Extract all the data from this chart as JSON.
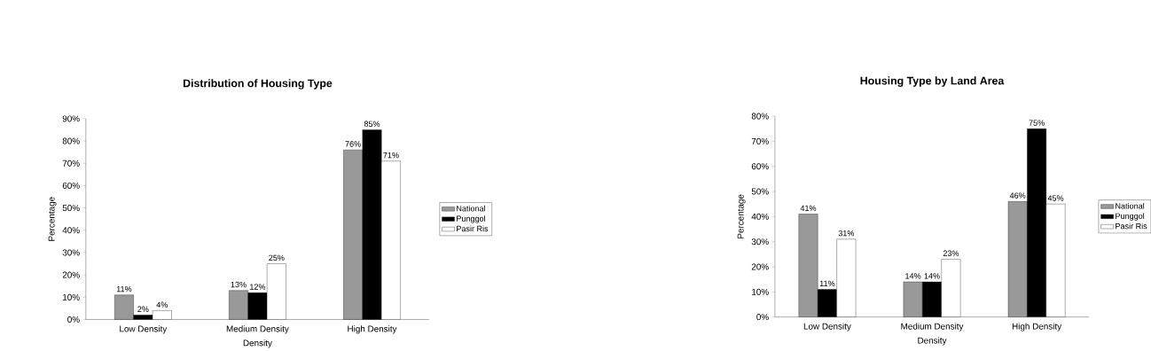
{
  "chart_data": [
    {
      "type": "bar",
      "title": "Distribution of Housing Type",
      "xlabel": "Density",
      "ylabel": "Percentage",
      "categories": [
        "Low Density",
        "Medium Density",
        "High Density"
      ],
      "series": [
        {
          "name": "National",
          "color": "#999999",
          "values": [
            11,
            13,
            76
          ],
          "value_labels": [
            "11%",
            "13%",
            "76%"
          ]
        },
        {
          "name": "Punggol",
          "color": "#000000",
          "values": [
            2,
            12,
            85
          ],
          "value_labels": [
            "2%",
            "12%",
            "85%"
          ]
        },
        {
          "name": "Pasir Ris",
          "color": "#ffffff",
          "values": [
            4,
            25,
            71
          ],
          "value_labels": [
            "4%",
            "25%",
            "71%"
          ]
        }
      ],
      "ylim": [
        0,
        90
      ],
      "yticks": [
        {
          "value": 0,
          "label": "0%"
        },
        {
          "value": 10,
          "label": "10%"
        },
        {
          "value": 20,
          "label": "20%"
        },
        {
          "value": 30,
          "label": "30%"
        },
        {
          "value": 40,
          "label": "40%"
        },
        {
          "value": 50,
          "label": "50%"
        },
        {
          "value": 60,
          "label": "60%"
        },
        {
          "value": 70,
          "label": "70%"
        },
        {
          "value": 80,
          "label": "80%"
        },
        {
          "value": 90,
          "label": "90%"
        }
      ],
      "legend": "right"
    },
    {
      "type": "bar",
      "title": "Housing Type by Land Area",
      "xlabel": "Density",
      "ylabel": "Percentage",
      "categories": [
        "Low Density",
        "Medium Density",
        "High Density"
      ],
      "series": [
        {
          "name": "National",
          "color": "#999999",
          "values": [
            41,
            14,
            46
          ],
          "value_labels": [
            "41%",
            "14%",
            "46%"
          ]
        },
        {
          "name": "Punggol",
          "color": "#000000",
          "values": [
            11,
            14,
            75
          ],
          "value_labels": [
            "11%",
            "14%",
            "75%"
          ]
        },
        {
          "name": "Pasir Ris",
          "color": "#ffffff",
          "values": [
            31,
            23,
            45
          ],
          "value_labels": [
            "31%",
            "23%",
            "45%"
          ]
        }
      ],
      "ylim": [
        0,
        80
      ],
      "yticks": [
        {
          "value": 0,
          "label": "0%"
        },
        {
          "value": 10,
          "label": "10%"
        },
        {
          "value": 20,
          "label": "20%"
        },
        {
          "value": 30,
          "label": "30%"
        },
        {
          "value": 40,
          "label": "40%"
        },
        {
          "value": 50,
          "label": "50%"
        },
        {
          "value": 60,
          "label": "60%"
        },
        {
          "value": 70,
          "label": "70%"
        },
        {
          "value": 80,
          "label": "80%"
        }
      ],
      "legend": "right"
    }
  ]
}
